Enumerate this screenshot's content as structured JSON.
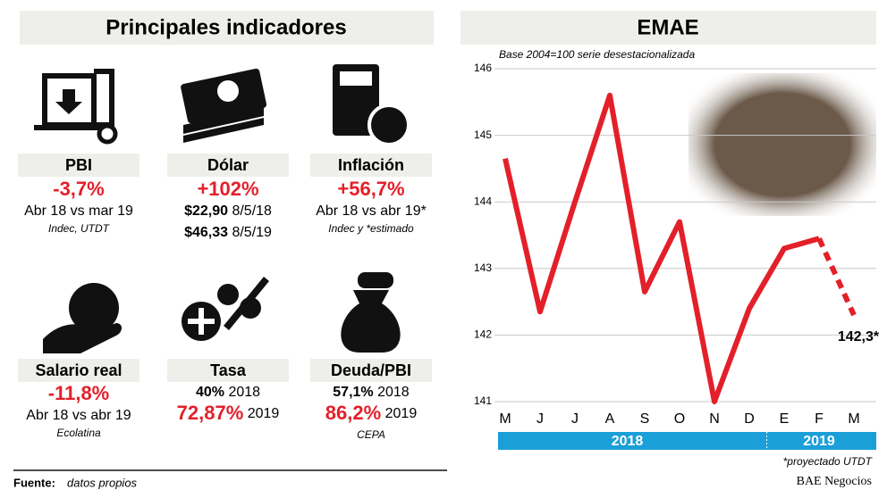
{
  "header": {
    "title": "Principales indicadores"
  },
  "indicators": [
    {
      "name": "PBI",
      "value": "-3,7%",
      "details": [
        {
          "text": "Abr 18 vs mar 19"
        }
      ],
      "source": "Indec, UTDT"
    },
    {
      "name": "Dólar",
      "value": "+102%",
      "details": [
        {
          "strong": "$22,90",
          "text": "8/5/18"
        },
        {
          "strong": "$46,33",
          "text": "8/5/19"
        }
      ]
    },
    {
      "name": "Inflación",
      "value": "+56,7%",
      "details": [
        {
          "text": "Abr 18 vs abr 19*"
        }
      ],
      "source": "Indec y *estimado"
    },
    {
      "name": "Salario real",
      "value": "-11,8%",
      "details": [
        {
          "text": "Abr 18 vs abr 19"
        }
      ],
      "source": "Ecolatina"
    },
    {
      "name": "Tasa",
      "details": [
        {
          "strong": "40%",
          "text": "2018"
        },
        {
          "strong": "72,87%",
          "text": "2019",
          "highlight": true
        }
      ]
    },
    {
      "name": "Deuda/PBI",
      "details": [
        {
          "strong": "57,1%",
          "text": "2018"
        },
        {
          "strong": "86,2%",
          "text": "2019",
          "highlight": true
        }
      ],
      "source": "CEPA"
    }
  ],
  "chart_data": {
    "type": "line",
    "title": "EMAE",
    "subtitle": "Base 2004=100 serie desestacionalizada",
    "categories": [
      "M",
      "J",
      "J",
      "A",
      "S",
      "O",
      "N",
      "D",
      "E",
      "F",
      "M"
    ],
    "series": [
      {
        "name": "EMAE",
        "color": "#e3202a",
        "values": [
          144.65,
          142.35,
          144.0,
          145.6,
          142.65,
          143.7,
          141.0,
          142.4,
          143.3,
          143.45,
          142.3
        ],
        "value_labels": [
          null,
          null,
          null,
          null,
          null,
          null,
          null,
          null,
          null,
          null,
          "142,3*"
        ],
        "dashed_from_index": 9
      }
    ],
    "ylim": [
      141,
      146
    ],
    "yticks": [
      141,
      142,
      143,
      144,
      145,
      146
    ],
    "grid": true,
    "periods": [
      {
        "label": "2018",
        "start": 0,
        "end": 7
      },
      {
        "label": "2019",
        "start": 8,
        "end": 10
      }
    ],
    "note": "*proyectado UTDT"
  },
  "footer": {
    "source_label": "Fuente:",
    "source": "datos propios",
    "brand": "BAE Negocios"
  }
}
